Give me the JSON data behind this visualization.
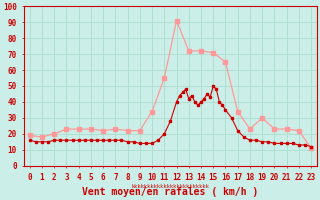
{
  "xlabel": "Vent moyen/en rafales ( km/h )",
  "background_color": "#cceee8",
  "grid_color": "#aaddcc",
  "ylim": [
    0,
    100
  ],
  "yticks": [
    0,
    10,
    20,
    30,
    40,
    50,
    60,
    70,
    80,
    90,
    100
  ],
  "x_hours": [
    0,
    1,
    2,
    3,
    4,
    5,
    6,
    7,
    8,
    9,
    10,
    11,
    12,
    13,
    14,
    15,
    16,
    17,
    18,
    19,
    20,
    21,
    22,
    23
  ],
  "wind_gust": [
    19,
    18,
    20,
    23,
    23,
    23,
    22,
    23,
    22,
    22,
    34,
    55,
    91,
    72,
    72,
    71,
    65,
    34,
    23,
    30,
    23,
    23,
    22,
    11
  ],
  "wind_avg_x": [
    0.0,
    0.5,
    1.0,
    1.5,
    2.0,
    2.5,
    3.0,
    3.5,
    4.0,
    4.5,
    5.0,
    5.5,
    6.0,
    6.5,
    7.0,
    7.5,
    8.0,
    8.5,
    9.0,
    9.5,
    10.0,
    10.5,
    11.0,
    11.5,
    12.0,
    12.25,
    12.5,
    12.75,
    13.0,
    13.25,
    13.5,
    13.75,
    14.0,
    14.25,
    14.5,
    14.75,
    15.0,
    15.25,
    15.5,
    15.75,
    16.0,
    16.5,
    17.0,
    17.5,
    18.0,
    18.5,
    19.0,
    19.5,
    20.0,
    20.5,
    21.0,
    21.5,
    22.0,
    22.5,
    23.0
  ],
  "wind_avg_y": [
    16,
    15,
    15,
    15,
    16,
    16,
    16,
    16,
    16,
    16,
    16,
    16,
    16,
    16,
    16,
    16,
    15,
    15,
    14,
    14,
    14,
    16,
    20,
    28,
    40,
    44,
    46,
    48,
    42,
    44,
    40,
    38,
    40,
    42,
    45,
    43,
    50,
    48,
    40,
    38,
    35,
    30,
    22,
    18,
    16,
    16,
    15,
    15,
    14,
    14,
    14,
    14,
    13,
    13,
    12
  ],
  "avg_color": "#cc0000",
  "gust_color": "#ff9999",
  "tick_color": "#cc0000",
  "tick_fontsize": 5.5,
  "ylabel_fontsize": 5.5,
  "xlabel_fontsize": 7,
  "marker_size_gust": 2.5,
  "marker_size_avg": 2.0,
  "linewidth_avg": 0.8,
  "linewidth_gust": 0.9,
  "figsize": [
    3.2,
    2.0
  ],
  "dpi": 100
}
